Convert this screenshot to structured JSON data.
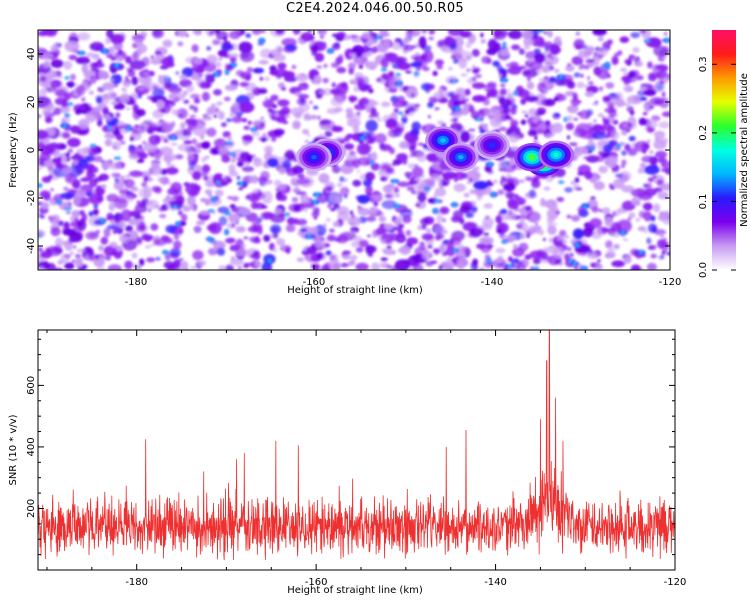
{
  "title": "C2E4.2024.046.00.50.R05",
  "chart_data": [
    {
      "type": "heatmap",
      "xlabel": "Height of straight line (km)",
      "ylabel": "Frequency (Hz)",
      "xlim": [
        -191,
        -120
      ],
      "ylim": [
        -50,
        50
      ],
      "xticks": [
        -180,
        -160,
        -140,
        -120
      ],
      "yticks": [
        -40,
        -20,
        0,
        20,
        40
      ],
      "colorbar": {
        "label": "Normalized spectral amplitude",
        "range": [
          0,
          0.35
        ],
        "ticks": [
          0.0,
          0.1,
          0.2,
          0.3
        ],
        "colors": [
          "#ffffff",
          "#c79cf2",
          "#7b00ee",
          "#2a1aff",
          "#00b7ff",
          "#00ffe1",
          "#2bff2b",
          "#e6ff00",
          "#ff9a00",
          "#ff1a1a",
          "#ff0f66"
        ]
      },
      "hotspots": [
        {
          "x": -134.2,
          "y": -5,
          "value": 0.3
        },
        {
          "x": -135.5,
          "y": -3,
          "value": 0.22
        },
        {
          "x": -132.8,
          "y": -2,
          "value": 0.18
        },
        {
          "x": -145.5,
          "y": 4,
          "value": 0.15
        },
        {
          "x": -143.5,
          "y": -3,
          "value": 0.14
        },
        {
          "x": -158.5,
          "y": -1,
          "value": 0.13
        },
        {
          "x": -160.0,
          "y": -3,
          "value": 0.12
        },
        {
          "x": -140.0,
          "y": 2,
          "value": 0.11
        }
      ]
    },
    {
      "type": "line",
      "xlabel": "Height of straight line (km)",
      "ylabel": "SNR (10 * v/v)",
      "xlim": [
        -191,
        -120
      ],
      "ylim": [
        0,
        780
      ],
      "xticks": [
        -180,
        -160,
        -140,
        -120
      ],
      "yticks": [
        200,
        400,
        600
      ],
      "color": "#ee3030",
      "baseline_mean": 140,
      "baseline_spread": 80,
      "peaks": [
        {
          "x": -134.0,
          "y": 780
        },
        {
          "x": -134.3,
          "y": 680
        },
        {
          "x": -133.3,
          "y": 560
        },
        {
          "x": -135.0,
          "y": 490
        },
        {
          "x": -132.5,
          "y": 420
        },
        {
          "x": -143.3,
          "y": 455
        },
        {
          "x": -179.0,
          "y": 425
        },
        {
          "x": -164.5,
          "y": 420
        },
        {
          "x": -162.0,
          "y": 405
        },
        {
          "x": -145.5,
          "y": 400
        },
        {
          "x": -168.0,
          "y": 380
        }
      ]
    }
  ]
}
